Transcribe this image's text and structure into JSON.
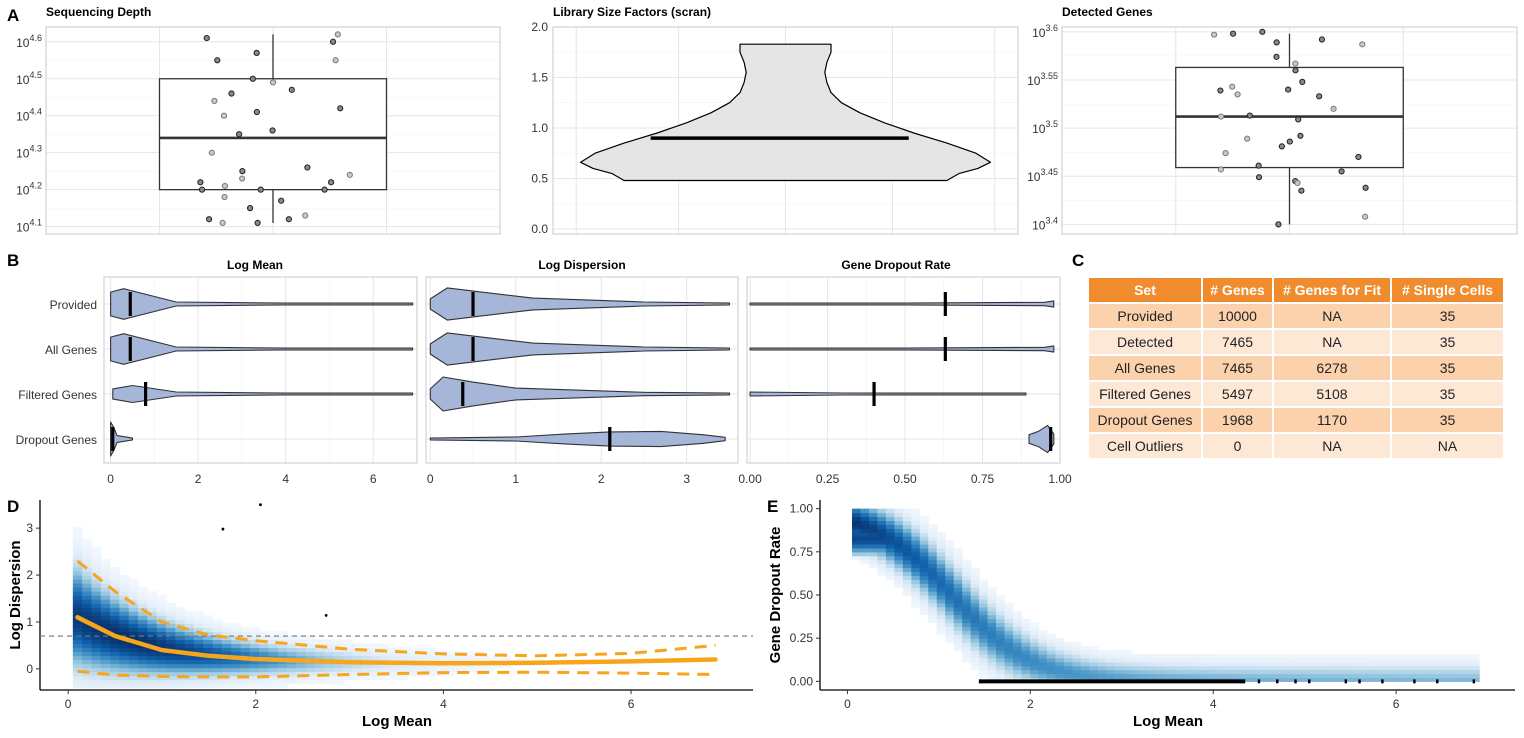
{
  "panel_letters": {
    "a": "A",
    "b": "B",
    "c": "C",
    "d": "D",
    "e": "E"
  },
  "table_c": {
    "headers": [
      "Set",
      "# Genes",
      "# Genes for Fit",
      "# Single Cells"
    ],
    "rows": [
      [
        "Provided",
        "10000",
        "NA",
        "35"
      ],
      [
        "Detected",
        "7465",
        "NA",
        "35"
      ],
      [
        "All Genes",
        "7465",
        "6278",
        "35"
      ],
      [
        "Filtered Genes",
        "5497",
        "5108",
        "35"
      ],
      [
        "Dropout Genes",
        "1968",
        "1170",
        "35"
      ],
      [
        "Cell Outliers",
        "0",
        "NA",
        "NA"
      ]
    ],
    "header_color": "#f08c2d",
    "row_colors": [
      "#fcd2ad",
      "#fde8d6"
    ]
  },
  "chart_data": [
    {
      "id": "A1",
      "type": "box",
      "title": "Sequencing Depth",
      "scale": "log10",
      "ylim": [
        4.08,
        4.64
      ],
      "yticks": [
        4.1,
        4.2,
        4.3,
        4.4,
        4.5,
        4.6
      ],
      "ytick_labels": [
        {
          "base": "10",
          "exp": "4.1"
        },
        {
          "base": "10",
          "exp": "4.2"
        },
        {
          "base": "10",
          "exp": "4.3"
        },
        {
          "base": "10",
          "exp": "4.4"
        },
        {
          "base": "10",
          "exp": "4.5"
        },
        {
          "base": "10",
          "exp": "4.6"
        }
      ],
      "box": {
        "min": 4.11,
        "q1": 4.2,
        "median": 4.34,
        "q3": 4.5,
        "max": 4.62
      },
      "points": [
        4.6,
        4.62,
        4.61,
        4.57,
        4.55,
        4.55,
        4.5,
        4.49,
        4.47,
        4.46,
        4.44,
        4.42,
        4.41,
        4.4,
        4.36,
        4.35,
        4.3,
        4.26,
        4.25,
        4.23,
        4.22,
        4.22,
        4.21,
        4.2,
        4.2,
        4.18,
        4.17,
        4.15,
        4.13,
        4.12,
        4.12,
        4.11,
        4.11,
        4.2,
        4.24
      ]
    },
    {
      "id": "A2",
      "type": "violin",
      "title": "Library Size Factors (scran)",
      "ylim": [
        -0.05,
        2.0
      ],
      "yticks": [
        0.0,
        0.5,
        1.0,
        1.5,
        2.0
      ],
      "ytick_labels": [
        "0.0",
        "0.5",
        "1.0",
        "1.5",
        "2.0"
      ],
      "median": 0.9,
      "range": [
        0.48,
        1.83
      ],
      "density": [
        [
          0.48,
          0.78
        ],
        [
          0.55,
          0.84
        ],
        [
          0.6,
          0.93
        ],
        [
          0.66,
          0.99
        ],
        [
          0.75,
          0.92
        ],
        [
          0.85,
          0.78
        ],
        [
          0.95,
          0.62
        ],
        [
          1.05,
          0.48
        ],
        [
          1.15,
          0.36
        ],
        [
          1.25,
          0.27
        ],
        [
          1.35,
          0.22
        ],
        [
          1.45,
          0.2
        ],
        [
          1.55,
          0.19
        ],
        [
          1.65,
          0.2
        ],
        [
          1.75,
          0.22
        ],
        [
          1.83,
          0.22
        ]
      ]
    },
    {
      "id": "A3",
      "type": "box",
      "title": "Detected Genes",
      "scale": "log10",
      "ylim": [
        3.39,
        3.605
      ],
      "yticks": [
        3.4,
        3.45,
        3.5,
        3.55,
        3.6
      ],
      "ytick_labels": [
        {
          "base": "10",
          "exp": "3.4"
        },
        {
          "base": "10",
          "exp": "3.45"
        },
        {
          "base": "10",
          "exp": "3.5"
        },
        {
          "base": "10",
          "exp": "3.55"
        },
        {
          "base": "10",
          "exp": "3.6"
        }
      ],
      "box": {
        "min": 3.4,
        "q1": 3.459,
        "median": 3.512,
        "q3": 3.563,
        "max": 3.598
      },
      "points": [
        3.6,
        3.597,
        3.592,
        3.598,
        3.587,
        3.589,
        3.574,
        3.567,
        3.56,
        3.548,
        3.543,
        3.54,
        3.539,
        3.535,
        3.533,
        3.513,
        3.512,
        3.509,
        3.492,
        3.489,
        3.486,
        3.481,
        3.474,
        3.47,
        3.461,
        3.457,
        3.449,
        3.445,
        3.443,
        3.438,
        3.435,
        3.408,
        3.4,
        3.455,
        3.52
      ]
    },
    {
      "id": "B1",
      "type": "violin",
      "title": "Log Mean",
      "orientation": "horizontal",
      "categories": [
        "Provided",
        "All Genes",
        "Filtered Genes",
        "Dropout Genes"
      ],
      "xlim": [
        -0.15,
        7.0
      ],
      "xticks": [
        0,
        2,
        4,
        6
      ],
      "xtick_labels": [
        "0",
        "2",
        "4",
        "6"
      ],
      "medians": [
        0.45,
        0.45,
        0.8,
        0.05
      ],
      "ranges": [
        [
          0.0,
          6.9
        ],
        [
          0.0,
          6.9
        ],
        [
          0.05,
          6.9
        ],
        [
          0.0,
          0.5
        ]
      ],
      "fill": "#a5b6d9"
    },
    {
      "id": "B2",
      "type": "violin",
      "title": "Log Dispersion",
      "orientation": "horizontal",
      "categories": [
        "Provided",
        "All Genes",
        "Filtered Genes",
        "Dropout Genes"
      ],
      "xlim": [
        -0.05,
        3.6
      ],
      "xticks": [
        0,
        1,
        2,
        3
      ],
      "xtick_labels": [
        "0",
        "1",
        "2",
        "3"
      ],
      "medians": [
        0.5,
        0.5,
        0.38,
        2.1
      ],
      "ranges": [
        [
          0.0,
          3.5
        ],
        [
          0.0,
          3.5
        ],
        [
          0.0,
          3.5
        ],
        [
          0.0,
          3.45
        ]
      ],
      "fill": "#a5b6d9"
    },
    {
      "id": "B3",
      "type": "violin",
      "title": "Gene Dropout Rate",
      "orientation": "horizontal",
      "categories": [
        "Provided",
        "All Genes",
        "Filtered Genes",
        "Dropout Genes"
      ],
      "xlim": [
        -0.01,
        1.0
      ],
      "xticks": [
        0.0,
        0.25,
        0.5,
        0.75,
        1.0
      ],
      "xtick_labels": [
        "0.00",
        "0.25",
        "0.50",
        "0.75",
        "1.00"
      ],
      "medians": [
        0.63,
        0.63,
        0.4,
        0.97
      ],
      "ranges": [
        [
          0.0,
          0.98
        ],
        [
          0.0,
          0.98
        ],
        [
          0.0,
          0.89
        ],
        [
          0.9,
          0.98
        ]
      ],
      "fill": "#a5b6d9"
    },
    {
      "id": "D",
      "type": "heatmap",
      "xlabel": "Log Mean",
      "ylabel": "Log Dispersion",
      "xlim": [
        -0.3,
        7.3
      ],
      "ylim": [
        -0.45,
        3.6
      ],
      "xticks": [
        0,
        2,
        4,
        6
      ],
      "xtick_labels": [
        "0",
        "2",
        "4",
        "6"
      ],
      "yticks": [
        0,
        1,
        2,
        3
      ],
      "ytick_labels": [
        "0",
        "1",
        "2",
        "3"
      ],
      "hline": 0.7,
      "trend": {
        "x": [
          0.1,
          0.5,
          1.0,
          1.5,
          2.0,
          3.0,
          4.0,
          5.0,
          6.0,
          6.9
        ],
        "y": [
          1.1,
          0.7,
          0.4,
          0.28,
          0.21,
          0.14,
          0.12,
          0.13,
          0.16,
          0.2
        ]
      },
      "upper": {
        "x": [
          0.1,
          0.5,
          1.0,
          1.5,
          2.0,
          3.0,
          4.0,
          5.0,
          6.0,
          6.9
        ],
        "y": [
          2.3,
          1.65,
          1.0,
          0.72,
          0.6,
          0.42,
          0.32,
          0.28,
          0.33,
          0.5
        ]
      },
      "lower": {
        "x": [
          0.1,
          0.5,
          1.0,
          1.5,
          2.0,
          3.0,
          4.0,
          5.0,
          6.0,
          6.9
        ],
        "y": [
          -0.05,
          -0.13,
          -0.16,
          -0.17,
          -0.17,
          -0.12,
          -0.08,
          -0.07,
          -0.09,
          -0.12
        ]
      },
      "trend_color": "#f7a51c",
      "points": [
        [
          2.05,
          3.5
        ],
        [
          1.65,
          2.98
        ],
        [
          2.75,
          1.14
        ]
      ]
    },
    {
      "id": "E",
      "type": "heatmap",
      "xlabel": "Log Mean",
      "ylabel": "Gene Dropout Rate",
      "xlim": [
        -0.3,
        7.3
      ],
      "ylim": [
        -0.05,
        1.05
      ],
      "xticks": [
        0,
        2,
        4,
        6
      ],
      "xtick_labels": [
        "0",
        "2",
        "4",
        "6"
      ],
      "yticks": [
        0.0,
        0.25,
        0.5,
        0.75,
        1.0
      ],
      "ytick_labels": [
        "0.00",
        "0.25",
        "0.50",
        "0.75",
        "1.00"
      ],
      "zero_points_x": [
        1.45,
        4.5,
        4.7,
        4.9,
        5.05,
        5.45,
        5.6,
        5.85,
        6.2,
        6.45,
        6.85
      ]
    }
  ]
}
